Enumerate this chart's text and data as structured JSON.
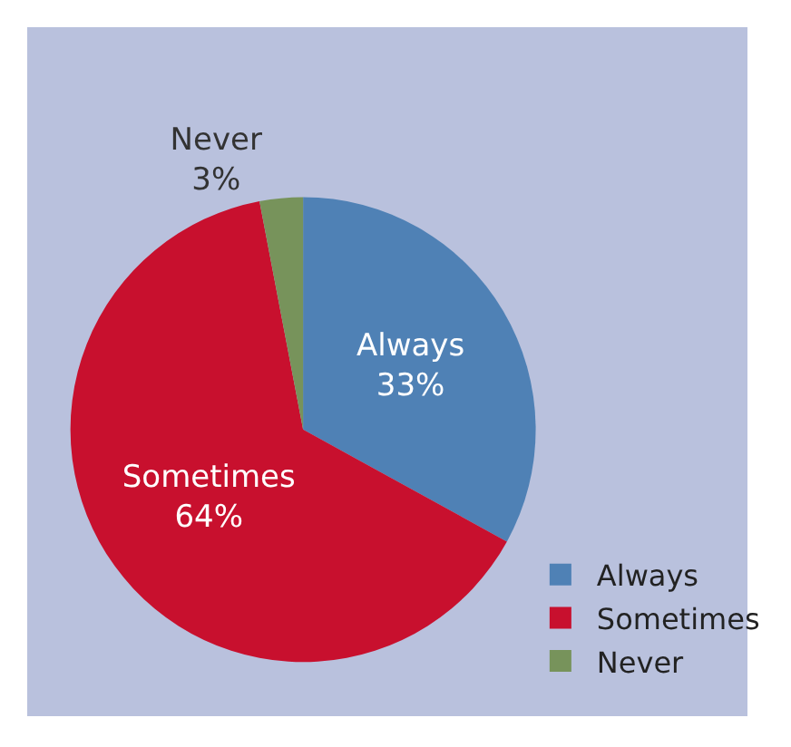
{
  "chart_data": {
    "type": "pie",
    "categories": [
      "Always",
      "Sometimes",
      "Never"
    ],
    "values": [
      33,
      64,
      3
    ],
    "value_labels": [
      "33%",
      "64%",
      "3%"
    ],
    "colors": [
      "#4f81b5",
      "#c8102e",
      "#77935b"
    ],
    "legend": "bottom right"
  }
}
